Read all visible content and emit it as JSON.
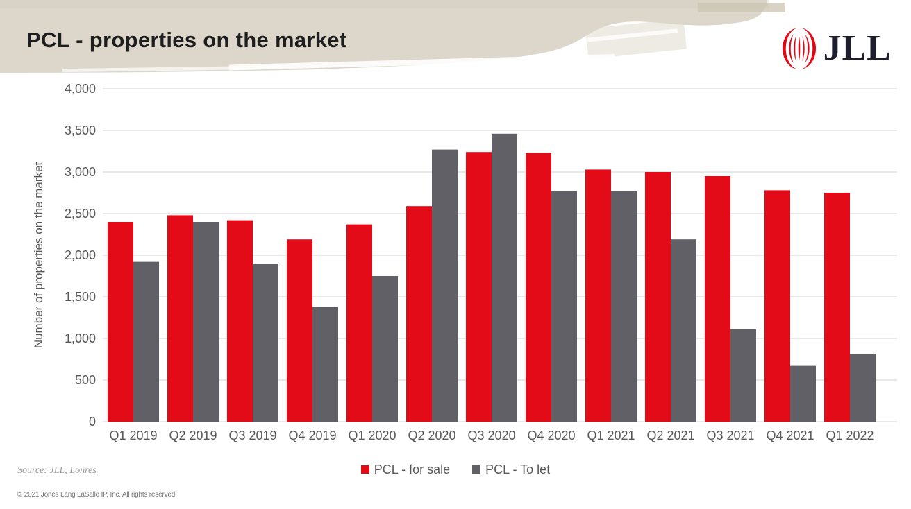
{
  "header": {
    "title": "PCL - properties on the market",
    "logo_text": "JLL"
  },
  "footer": {
    "source": "Source: JLL, Lonres",
    "copyright": "© 2021 Jones Lang LaSalle IP, Inc. All rights reserved."
  },
  "colors": {
    "accent_red": "#e30b17",
    "bar_gray": "#616066",
    "header_beige": "#dcd7ca",
    "header_beige_dark": "#cbc4b2",
    "grid_gray": "#d9d9d9",
    "tick_text": "#595959",
    "logo_red": "#e30613",
    "logo_navy": "#1f1e2c"
  },
  "chart_data": {
    "type": "bar",
    "title": "PCL - properties on the market",
    "xlabel": "",
    "ylabel": "Number of properties on the market",
    "ylim": [
      0,
      4000
    ],
    "ytick_step": 500,
    "grid": true,
    "legend_position": "bottom",
    "categories": [
      "Q1 2019",
      "Q2 2019",
      "Q3 2019",
      "Q4 2019",
      "Q1 2020",
      "Q2 2020",
      "Q3 2020",
      "Q4 2020",
      "Q1 2021",
      "Q2 2021",
      "Q3 2021",
      "Q4 2021",
      "Q1 2022"
    ],
    "series": [
      {
        "name": "PCL - for sale",
        "color": "#e30b17",
        "values": [
          2400,
          2480,
          2420,
          2190,
          2370,
          2590,
          3240,
          3230,
          3030,
          3000,
          2950,
          2780,
          2750
        ]
      },
      {
        "name": "PCL - To let",
        "color": "#616066",
        "values": [
          1920,
          2400,
          1900,
          1380,
          1750,
          3270,
          3460,
          2770,
          2770,
          2190,
          1110,
          670,
          810
        ]
      }
    ]
  }
}
